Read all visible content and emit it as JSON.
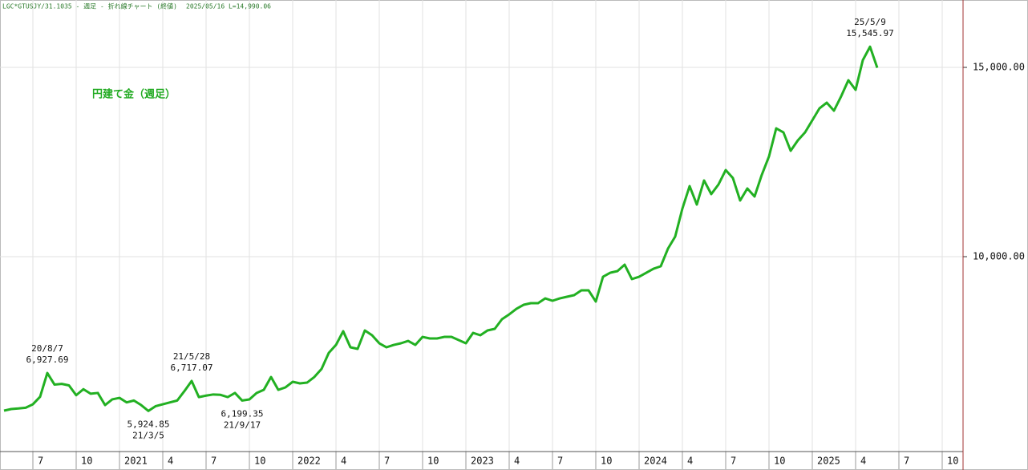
{
  "chart_data": {
    "type": "line",
    "header": "LGC*GTUSJY/31.1035 - 週足 - 折れ線チャート (終値)",
    "header_info": "2025/05/16 L=14,990.06",
    "categories": [
      null,
      null,
      null,
      null,
      "7",
      null,
      null,
      null,
      null,
      null,
      "10",
      null,
      null,
      null,
      null,
      null,
      "2021",
      null,
      null,
      null,
      null,
      null,
      "4",
      null,
      null,
      null,
      null,
      null,
      "7",
      null,
      null,
      null,
      null,
      null,
      "10",
      null,
      null,
      null,
      null,
      null,
      "2022",
      null,
      null,
      null,
      null,
      null,
      "4",
      null,
      null,
      null,
      null,
      null,
      "7",
      null,
      null,
      null,
      null,
      null,
      "10",
      null,
      null,
      null,
      null,
      null,
      "2023",
      null,
      null,
      null,
      null,
      null,
      "4",
      null,
      null,
      null,
      null,
      null,
      "7",
      null,
      null,
      null,
      null,
      null,
      "10",
      null,
      null,
      null,
      null,
      null,
      "2024",
      null,
      null,
      null,
      null,
      null,
      "4",
      null,
      null,
      null,
      null,
      null,
      "7",
      null,
      null,
      null,
      null,
      null,
      "10",
      null,
      null,
      null,
      null,
      null,
      "2025",
      null,
      null,
      null,
      null,
      null,
      "4",
      null,
      null,
      null,
      null,
      null,
      "7",
      null,
      null,
      null,
      null,
      null,
      "10",
      null,
      null
    ],
    "series": [
      {
        "name": "円建て金（週足）",
        "color": "#22b022",
        "values": [
          5932,
          5975,
          5990,
          6010,
          6100,
          6300,
          6927.69,
          6620,
          6640,
          6600,
          6340,
          6500,
          6380,
          6400,
          6080,
          6230,
          6270,
          6150,
          6200,
          6080,
          5924.85,
          6050,
          6100,
          6150,
          6200,
          6450,
          6717.07,
          6290,
          6330,
          6360,
          6350,
          6290,
          6400,
          6199.35,
          6229,
          6398,
          6483,
          6822,
          6483,
          6547,
          6695,
          6653,
          6674,
          6822,
          7034,
          7458,
          7669,
          8030,
          7606,
          7564,
          8051,
          7924,
          7712,
          7606,
          7669,
          7712,
          7775,
          7669,
          7881,
          7839,
          7839,
          7881,
          7881,
          7797,
          7712,
          7987,
          7924,
          8051,
          8093,
          8347,
          8475,
          8623,
          8729,
          8771,
          8771,
          8898,
          8835,
          8898,
          8941,
          8983,
          9110,
          9110,
          8814,
          9470,
          9576,
          9619,
          9788,
          9407,
          9470,
          9576,
          9682,
          9746,
          10212,
          10530,
          11271,
          11864,
          11377,
          12013,
          11653,
          11907,
          12288,
          12076,
          11483,
          11801,
          11589,
          12161,
          12648,
          13390,
          13284,
          12797,
          13072,
          13284,
          13602,
          13919,
          14068,
          13856,
          14237,
          14661,
          14407,
          15191,
          15545.97,
          14990.06,
          null,
          null,
          null,
          null,
          null,
          null,
          null,
          null,
          null,
          null,
          null
        ],
        "value_labels": [
          null,
          null,
          null,
          null,
          null,
          null,
          "6,927.69",
          null,
          null,
          null,
          null,
          null,
          null,
          null,
          null,
          null,
          null,
          null,
          null,
          null,
          "5,924.85",
          null,
          null,
          null,
          null,
          null,
          "6,717.07",
          null,
          null,
          null,
          null,
          null,
          null,
          "6,199.35",
          null,
          null,
          null,
          null,
          null,
          null,
          null,
          null,
          null,
          null,
          null,
          null,
          null,
          null,
          null,
          null,
          null,
          null,
          null,
          null,
          null,
          null,
          null,
          null,
          null,
          null,
          null,
          null,
          null,
          null,
          null,
          null,
          null,
          null,
          null,
          null,
          null,
          null,
          null,
          null,
          null,
          null,
          null,
          null,
          null,
          null,
          null,
          null,
          null,
          null,
          null,
          null,
          null,
          null,
          null,
          null,
          null,
          null,
          null,
          null,
          null,
          null,
          null,
          null,
          null,
          null,
          null,
          null,
          null,
          null,
          null,
          null,
          null,
          null,
          null,
          null,
          null,
          null,
          null,
          null,
          null,
          null,
          null,
          null,
          null,
          null,
          "15,545.97",
          null,
          null,
          null,
          null,
          null,
          null,
          null,
          null,
          null,
          null,
          null,
          null
        ],
        "date_labels": [
          null,
          null,
          null,
          null,
          null,
          null,
          "20/8/7",
          null,
          null,
          null,
          null,
          null,
          null,
          null,
          null,
          null,
          null,
          null,
          null,
          null,
          "21/3/5",
          null,
          null,
          null,
          null,
          null,
          "21/5/28",
          null,
          null,
          null,
          null,
          null,
          null,
          "21/9/17",
          null,
          null,
          null,
          null,
          null,
          null,
          null,
          null,
          null,
          null,
          null,
          null,
          null,
          null,
          null,
          null,
          null,
          null,
          null,
          null,
          null,
          null,
          null,
          null,
          null,
          null,
          null,
          null,
          null,
          null,
          null,
          null,
          null,
          null,
          null,
          null,
          null,
          null,
          null,
          null,
          null,
          null,
          null,
          null,
          null,
          null,
          null,
          null,
          null,
          null,
          null,
          null,
          null,
          null,
          null,
          null,
          null,
          null,
          null,
          null,
          null,
          null,
          null,
          null,
          null,
          null,
          null,
          null,
          null,
          null,
          null,
          null,
          null,
          null,
          null,
          null,
          null,
          null,
          null,
          null,
          null,
          null,
          null,
          null,
          null,
          null,
          "25/5/9",
          null,
          null,
          null,
          null,
          null,
          null,
          null,
          null,
          null,
          null,
          null,
          null
        ]
      }
    ],
    "ylim": [
      4852,
      16780
    ],
    "yticks": [
      {
        "value": 10000,
        "label": "10,000.00"
      },
      {
        "value": 15000,
        "label": "15,000.00"
      }
    ],
    "grid": true,
    "y_axis_side": "right"
  }
}
